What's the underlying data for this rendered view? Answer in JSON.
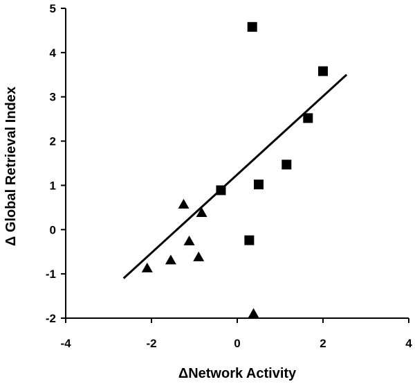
{
  "chart_data": {
    "type": "scatter",
    "xlabel": "ΔNetwork Activity",
    "ylabel": "Δ Global Retrieval Index",
    "xlim": [
      -4,
      4
    ],
    "ylim": [
      -2,
      5
    ],
    "xticks": [
      -4,
      -2,
      0,
      2,
      4
    ],
    "yticks": [
      -2,
      -1,
      0,
      1,
      2,
      3,
      4,
      5
    ],
    "series": [
      {
        "marker": "square",
        "color": "#000000",
        "points": [
          {
            "x": 0.35,
            "y": 4.58
          },
          {
            "x": 2.0,
            "y": 3.58
          },
          {
            "x": 1.65,
            "y": 2.52
          },
          {
            "x": 1.15,
            "y": 1.47
          },
          {
            "x": 0.5,
            "y": 1.02
          },
          {
            "x": -0.38,
            "y": 0.89
          },
          {
            "x": 0.28,
            "y": -0.24
          }
        ]
      },
      {
        "marker": "triangle",
        "color": "#000000",
        "points": [
          {
            "x": -1.25,
            "y": 0.57
          },
          {
            "x": -0.83,
            "y": 0.38
          },
          {
            "x": -1.12,
            "y": -0.26
          },
          {
            "x": -0.9,
            "y": -0.62
          },
          {
            "x": -1.55,
            "y": -0.69
          },
          {
            "x": -2.1,
            "y": -0.87
          },
          {
            "x": 0.38,
            "y": -1.9
          }
        ]
      }
    ],
    "trendline": {
      "x1": -2.65,
      "y1": -1.1,
      "x2": 2.55,
      "y2": 3.5
    }
  }
}
